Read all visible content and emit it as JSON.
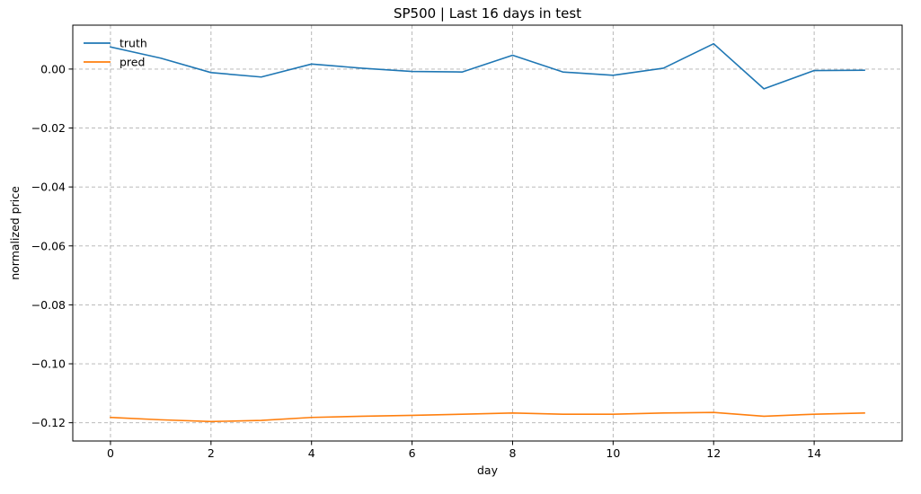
{
  "chart_data": {
    "type": "line",
    "title": "SP500 | Last 16 days in test",
    "xlabel": "day",
    "ylabel": "normalized price",
    "xlim": [
      -0.75,
      15.75
    ],
    "ylim": [
      -0.1262,
      0.0149
    ],
    "xticks": [
      0,
      2,
      4,
      6,
      8,
      10,
      12,
      14
    ],
    "xtick_labels": [
      "0",
      "2",
      "4",
      "6",
      "8",
      "10",
      "12",
      "14"
    ],
    "yticks": [
      0.0,
      -0.02,
      -0.04,
      -0.06,
      -0.08,
      -0.1,
      -0.12
    ],
    "ytick_labels": [
      "0.00",
      "−0.02",
      "−0.04",
      "−0.06",
      "−0.08",
      "−0.10",
      "−0.12"
    ],
    "grid": true,
    "legend_position": "top-left",
    "x": [
      0,
      1,
      2,
      3,
      4,
      5,
      6,
      7,
      8,
      9,
      10,
      11,
      12,
      13,
      14,
      15
    ],
    "series": [
      {
        "name": "truth",
        "color": "#1f77b4",
        "values": [
          0.0075,
          0.0037,
          -0.0012,
          -0.0027,
          0.0017,
          0.0003,
          -0.0008,
          -0.001,
          0.0047,
          -0.001,
          -0.0021,
          0.0003,
          0.0086,
          -0.0067,
          -0.0005,
          -0.0004
        ]
      },
      {
        "name": "pred",
        "color": "#ff7f0e",
        "values": [
          -0.1182,
          -0.119,
          -0.1196,
          -0.1192,
          -0.1182,
          -0.1178,
          -0.1175,
          -0.1171,
          -0.1167,
          -0.1171,
          -0.1171,
          -0.1167,
          -0.1165,
          -0.1178,
          -0.1171,
          -0.1167
        ]
      }
    ]
  }
}
